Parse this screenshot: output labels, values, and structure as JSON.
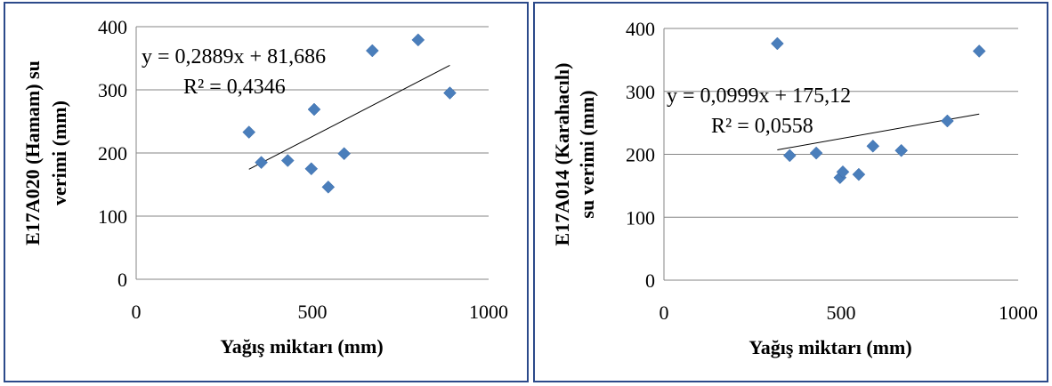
{
  "chart_data": [
    {
      "type": "scatter",
      "xlabel": "Yağış miktarı (mm)",
      "ylabel_lines": [
        "E17A020 (Hamam) su",
        "verimi (mm)"
      ],
      "xlim": [
        0,
        1000
      ],
      "ylim": [
        0,
        400
      ],
      "xticks": [
        "0",
        "500",
        "1000"
      ],
      "yticks": [
        "0",
        "100",
        "200",
        "300",
        "400"
      ],
      "grid": "horizontal",
      "marker": "diamond",
      "marker_color": "#4a7ebb",
      "trendline": {
        "slope": 0.2889,
        "intercept": 81.686,
        "x_range": [
          320,
          890
        ]
      },
      "equation": "y = 0,2889x + 81,686",
      "r2": "R² = 0,4346",
      "points": [
        {
          "x": 320,
          "y": 233
        },
        {
          "x": 355,
          "y": 185
        },
        {
          "x": 430,
          "y": 188
        },
        {
          "x": 497,
          "y": 175
        },
        {
          "x": 505,
          "y": 269
        },
        {
          "x": 545,
          "y": 146
        },
        {
          "x": 590,
          "y": 199
        },
        {
          "x": 670,
          "y": 362
        },
        {
          "x": 800,
          "y": 379
        },
        {
          "x": 890,
          "y": 295
        }
      ]
    },
    {
      "type": "scatter",
      "xlabel": "Yağış miktarı (mm)",
      "ylabel_lines": [
        "E17A014 (Karahacılı)",
        "su verimi (mm)"
      ],
      "xlim": [
        0,
        1000
      ],
      "ylim": [
        0,
        400
      ],
      "xticks": [
        "0",
        "500",
        "1000"
      ],
      "yticks": [
        "0",
        "100",
        "200",
        "300",
        "400"
      ],
      "grid": "horizontal",
      "marker": "diamond",
      "marker_color": "#4a7ebb",
      "trendline": {
        "slope": 0.0999,
        "intercept": 175.12,
        "x_range": [
          320,
          890
        ]
      },
      "equation": "y = 0,0999x + 175,12",
      "r2": "R² = 0,0558",
      "points": [
        {
          "x": 320,
          "y": 376
        },
        {
          "x": 355,
          "y": 198
        },
        {
          "x": 430,
          "y": 202
        },
        {
          "x": 497,
          "y": 163
        },
        {
          "x": 505,
          "y": 172
        },
        {
          "x": 550,
          "y": 168
        },
        {
          "x": 590,
          "y": 213
        },
        {
          "x": 670,
          "y": 206
        },
        {
          "x": 800,
          "y": 253
        },
        {
          "x": 890,
          "y": 364
        }
      ]
    }
  ]
}
